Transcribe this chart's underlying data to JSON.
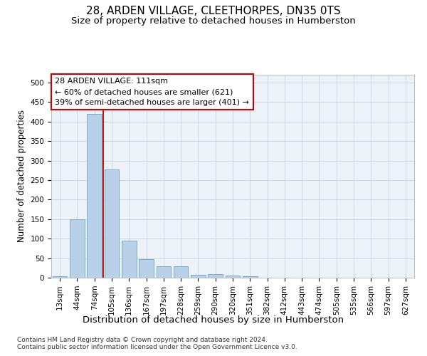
{
  "title": "28, ARDEN VILLAGE, CLEETHORPES, DN35 0TS",
  "subtitle": "Size of property relative to detached houses in Humberston",
  "xlabel": "Distribution of detached houses by size in Humberston",
  "ylabel": "Number of detached properties",
  "footnote1": "Contains HM Land Registry data © Crown copyright and database right 2024.",
  "footnote2": "Contains public sector information licensed under the Open Government Licence v3.0.",
  "categories": [
    "13sqm",
    "44sqm",
    "74sqm",
    "105sqm",
    "136sqm",
    "167sqm",
    "197sqm",
    "228sqm",
    "259sqm",
    "290sqm",
    "320sqm",
    "351sqm",
    "382sqm",
    "412sqm",
    "443sqm",
    "474sqm",
    "505sqm",
    "535sqm",
    "566sqm",
    "597sqm",
    "627sqm"
  ],
  "values": [
    4,
    150,
    420,
    277,
    95,
    48,
    29,
    29,
    8,
    10,
    5,
    3,
    0,
    0,
    0,
    0,
    0,
    0,
    0,
    0,
    0
  ],
  "bar_color": "#b8d0e8",
  "bar_edge_color": "#7aaac8",
  "grid_color": "#c8d4e4",
  "background_color": "#edf2f8",
  "annotation_line1": "28 ARDEN VILLAGE: 111sqm",
  "annotation_line2": "← 60% of detached houses are smaller (621)",
  "annotation_line3": "39% of semi-detached houses are larger (401) →",
  "ylim": [
    0,
    520
  ],
  "vline_x": 2.5,
  "vline_color": "#cc0000",
  "annotation_box_color": "#ffffff",
  "annotation_box_edge": "#cc0000",
  "title_fontsize": 11,
  "subtitle_fontsize": 9.5,
  "xlabel_fontsize": 9.5,
  "ylabel_fontsize": 8.5,
  "tick_fontsize": 7.5,
  "annotation_fontsize": 8,
  "footnote_fontsize": 6.5
}
